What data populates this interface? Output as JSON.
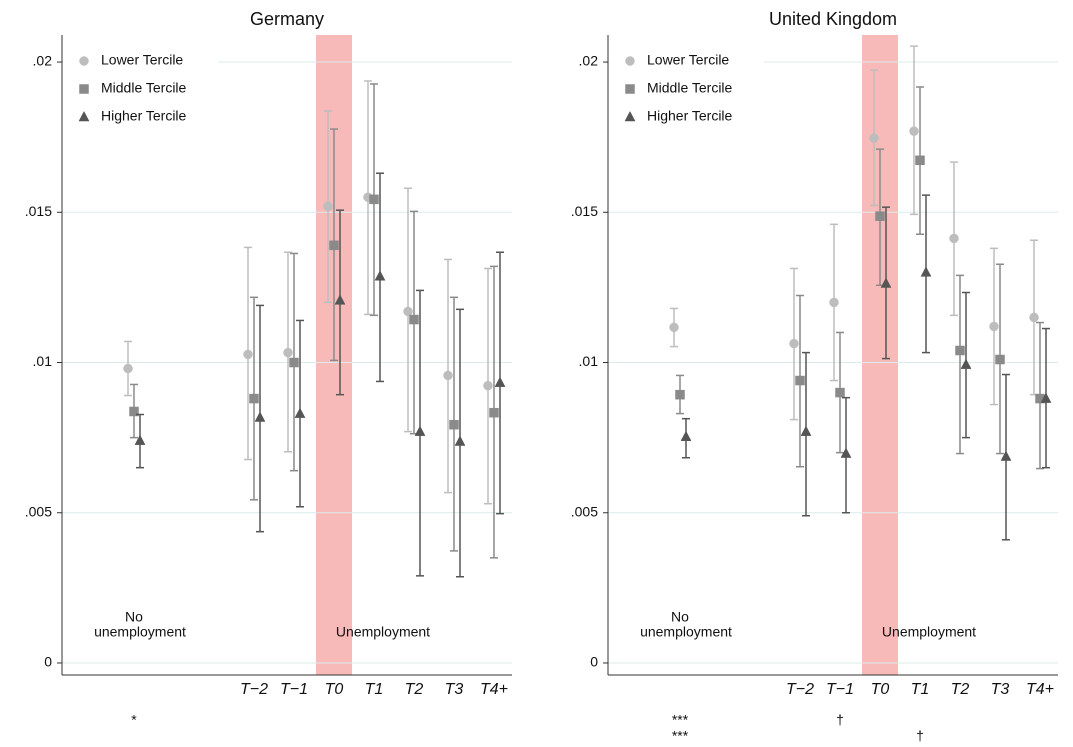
{
  "chart_data": [
    {
      "type": "errorbar",
      "title": "Germany",
      "categories": [
        null,
        "T−2",
        "T−1",
        "T0",
        "T1",
        "T2",
        "T3",
        "T4+"
      ],
      "ylim": [
        -0.0004,
        0.0209
      ],
      "yticks": [
        0,
        {
          "value": 0.005,
          "label": ".005"
        },
        {
          "value": 0.01,
          "label": ".01"
        },
        {
          "value": 0.015,
          "label": ".015"
        },
        {
          "value": 0.02,
          "label": ".02"
        }
      ],
      "grid": true,
      "legend": "top-left",
      "highlight": {
        "category": "T0",
        "color": "#f8b9b9"
      },
      "annotations": {
        "no_unemployment": [
          "No",
          "unemployment"
        ],
        "unemployment": "Unemployment"
      },
      "significance_rows": [
        [
          "*",
          null,
          null,
          null,
          null,
          null,
          null,
          null
        ]
      ],
      "series": [
        {
          "name": "Lower Tercile",
          "color": "#bdbdbd",
          "marker": "circle",
          "values": [
            0.0098,
            0.01027,
            0.01033,
            0.0152,
            0.0155,
            0.0117,
            0.00957,
            0.00923
          ],
          "lower": [
            0.0089,
            0.00677,
            0.00703,
            0.012,
            0.0116,
            0.0077,
            0.00567,
            0.0053
          ],
          "upper": [
            0.0107,
            0.01383,
            0.01367,
            0.01837,
            0.01937,
            0.0158,
            0.01343,
            0.01313
          ]
        },
        {
          "name": "Middle Tercile",
          "color": "#8a8a8a",
          "marker": "square",
          "values": [
            0.00837,
            0.0088,
            0.01,
            0.0139,
            0.01543,
            0.01143,
            0.00793,
            0.00833
          ],
          "lower": [
            0.0075,
            0.00543,
            0.0064,
            0.01007,
            0.01157,
            0.00763,
            0.00373,
            0.0035
          ],
          "upper": [
            0.00927,
            0.01217,
            0.01363,
            0.01777,
            0.01927,
            0.01503,
            0.01217,
            0.0132
          ]
        },
        {
          "name": "Higher Tercile",
          "color": "#555555",
          "marker": "triangle",
          "values": [
            0.0074,
            0.00817,
            0.0083,
            0.01207,
            0.01287,
            0.0077,
            0.00737,
            0.00933
          ],
          "lower": [
            0.0065,
            0.00437,
            0.0052,
            0.00893,
            0.00937,
            0.0029,
            0.00287,
            0.00497
          ],
          "upper": [
            0.00827,
            0.0119,
            0.0114,
            0.01507,
            0.0163,
            0.0124,
            0.01177,
            0.01367
          ]
        }
      ]
    },
    {
      "type": "errorbar",
      "title": "United Kingdom",
      "categories": [
        null,
        "T−2",
        "T−1",
        "T0",
        "T1",
        "T2",
        "T3",
        "T4+"
      ],
      "ylim": [
        -0.0004,
        0.0209
      ],
      "yticks": [
        0,
        {
          "value": 0.005,
          "label": ".005"
        },
        {
          "value": 0.01,
          "label": ".01"
        },
        {
          "value": 0.015,
          "label": ".015"
        },
        {
          "value": 0.02,
          "label": ".02"
        }
      ],
      "grid": true,
      "legend": "top-left",
      "highlight": {
        "category": "T0",
        "color": "#f8b9b9"
      },
      "annotations": {
        "no_unemployment": [
          "No",
          "unemployment"
        ],
        "unemployment": "Unemployment"
      },
      "significance_rows": [
        [
          "***",
          null,
          "†",
          null,
          null,
          null,
          null,
          null
        ],
        [
          "***",
          null,
          null,
          null,
          "†",
          null,
          null,
          null
        ]
      ],
      "series": [
        {
          "name": "Lower Tercile",
          "color": "#bdbdbd",
          "marker": "circle",
          "values": [
            0.01117,
            0.01063,
            0.012,
            0.01747,
            0.0177,
            0.01413,
            0.0112,
            0.0115
          ],
          "lower": [
            0.01053,
            0.0081,
            0.0094,
            0.01523,
            0.01493,
            0.01157,
            0.0086,
            0.00893
          ],
          "upper": [
            0.0118,
            0.01313,
            0.0146,
            0.01973,
            0.02053,
            0.01667,
            0.0138,
            0.01407
          ]
        },
        {
          "name": "Middle Tercile",
          "color": "#8a8a8a",
          "marker": "square",
          "values": [
            0.00893,
            0.0094,
            0.009,
            0.01487,
            0.01673,
            0.0104,
            0.0101,
            0.0088
          ],
          "lower": [
            0.0083,
            0.00653,
            0.007,
            0.01257,
            0.01427,
            0.00697,
            0.00697,
            0.00647
          ],
          "upper": [
            0.00957,
            0.01223,
            0.011,
            0.0171,
            0.01917,
            0.0129,
            0.01327,
            0.01133
          ]
        },
        {
          "name": "Higher Tercile",
          "color": "#555555",
          "marker": "triangle",
          "values": [
            0.00753,
            0.0077,
            0.00697,
            0.01263,
            0.013,
            0.00993,
            0.00687,
            0.0088
          ],
          "lower": [
            0.00683,
            0.0049,
            0.005,
            0.01013,
            0.01033,
            0.0075,
            0.0041,
            0.0065
          ],
          "upper": [
            0.00813,
            0.01033,
            0.00883,
            0.01517,
            0.01557,
            0.01233,
            0.0096,
            0.01113
          ]
        }
      ]
    }
  ]
}
